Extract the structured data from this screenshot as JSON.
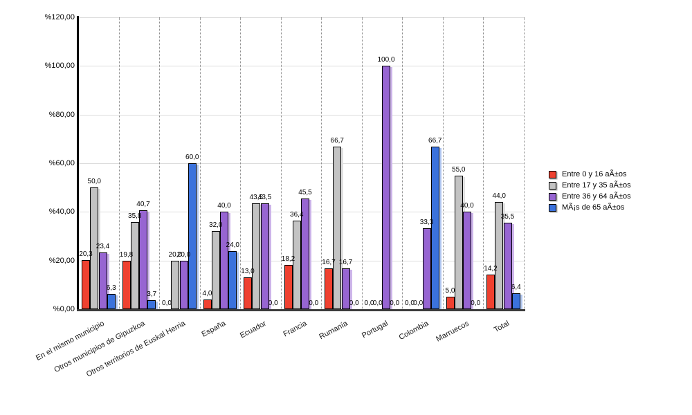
{
  "chart_data": {
    "type": "bar",
    "title": "",
    "xlabel": "",
    "ylabel": "",
    "ylim": [
      0,
      120
    ],
    "grid": true,
    "legend_position": "right",
    "y_ticks": [
      "%120,00",
      "%100,00",
      "%80,00",
      "%60,00",
      "%40,00",
      "%20,00",
      "%0,00"
    ],
    "y_tick_values": [
      120,
      100,
      80,
      60,
      40,
      20,
      0
    ],
    "categories": [
      "En el mismo municipio",
      "Otros municipios de Gipuzkoa",
      "Otros territorios de Euskal Herria",
      "España",
      "Ecuador",
      "Francia",
      "Rumanía",
      "Portugal",
      "Colombia",
      "Marruecos",
      "Total"
    ],
    "series": [
      {
        "name": "Entre 0 y 16 aÃ±os",
        "color": "#ef4130",
        "shadow_color": "#f6b3aa",
        "values": [
          20.3,
          19.8,
          0.0,
          4.0,
          13.0,
          18.2,
          16.7,
          0.0,
          0.0,
          5.0,
          14.2
        ],
        "labels": [
          "20,3",
          "19,8",
          "0,0",
          "4,0",
          "13,0",
          "18,2",
          "16,7",
          "0,0",
          "0,0",
          "5,0",
          "14,2"
        ]
      },
      {
        "name": "Entre 17 y 35 aÃ±os",
        "color": "#c3c3c3",
        "shadow_color": "#e0e0e0",
        "values": [
          50.0,
          35.8,
          20.0,
          32.0,
          43.5,
          36.4,
          66.7,
          0.0,
          0.0,
          55.0,
          44.0
        ],
        "labels": [
          "50,0",
          "35,8",
          "20,0",
          "32,0",
          "43,5",
          "36,4",
          "66,7",
          "0,0",
          "0,0",
          "55,0",
          "44,0"
        ]
      },
      {
        "name": "Entre 36 y 64 aÃ±os",
        "color": "#9765d2",
        "shadow_color": "#cdb5ea",
        "values": [
          23.4,
          40.7,
          20.0,
          40.0,
          43.5,
          45.5,
          16.7,
          100.0,
          33.3,
          40.0,
          35.5
        ],
        "labels": [
          "23,4",
          "40,7",
          "20,0",
          "40,0",
          "43,5",
          "45,5",
          "16,7",
          "100,0",
          "33,3",
          "40,0",
          "35,5"
        ]
      },
      {
        "name": "MÃ¡s de 65 aÃ±os",
        "color": "#3b72dc",
        "shadow_color": "#b1c7f0",
        "values": [
          6.3,
          3.7,
          60.0,
          24.0,
          0.0,
          0.0,
          0.0,
          0.0,
          66.7,
          0.0,
          6.4
        ],
        "labels": [
          "6,3",
          "3,7",
          "60,0",
          "24,0",
          "0,0",
          "0,0",
          "0,0",
          "0,0",
          "66,7",
          "0,0",
          "6,4"
        ]
      }
    ]
  }
}
